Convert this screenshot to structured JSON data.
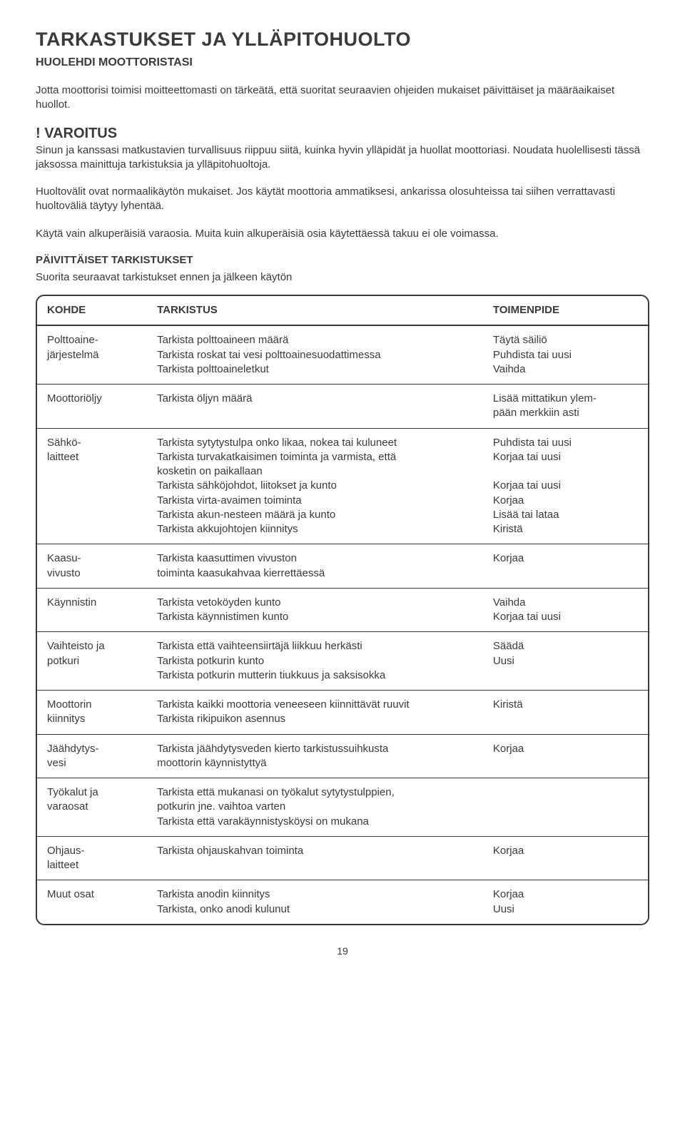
{
  "title": "TARKASTUKSET JA YLLÄPITOHUOLTO",
  "subtitle": "HUOLEHDI MOOTTORISTASI",
  "intro_paragraph": "Jotta moottorisi toimisi moitteettomasti on tärkeätä, että suoritat seuraavien ohjeiden mukaiset päivittäiset ja määräaikaiset huollot.",
  "warning_heading": "! VAROITUS",
  "warning_text": "Sinun ja kanssasi matkustavien turvallisuus riippuu siitä, kuinka hyvin ylläpidät ja huollat moottoriasi. Noudata huolellisesti tässä jaksossa mainittuja tarkistuksia ja ylläpitohuoltoja.",
  "interval_text": "Huoltovälit ovat normaalikäytön mukaiset. Jos käytät moottoria ammatiksesi, ankarissa olosuhteissa tai siihen verrattavasti huoltoväliä täytyy lyhentää.",
  "parts_text": "Käytä vain alkuperäisiä varaosia. Muita kuin alkuperäisiä osia käytettäessä takuu ei ole voimassa.",
  "section_heading": "PÄIVITTÄISET TARKISTUKSET",
  "section_intro": "Suorita seuraavat tarkistukset ennen ja jälkeen käytön",
  "table": {
    "headers": {
      "kohde": "KOHDE",
      "tarkistus": "TARKISTUS",
      "toimenpide": "TOIMENPIDE"
    },
    "rows": [
      {
        "kohde": "Polttoaine-\njärjestelmä",
        "tarkistus": "Tarkista polttoaineen määrä\nTarkista roskat tai vesi polttoainesuodattimessa\nTarkista polttoaineletkut",
        "toimenpide": "Täytä säiliö\nPuhdista tai uusi\nVaihda"
      },
      {
        "kohde": "Moottoriöljy",
        "tarkistus": "Tarkista öljyn määrä",
        "toimenpide": "Lisää mittatikun ylem-\npään merkkiin asti"
      },
      {
        "kohde": "Sähkö-\nlaitteet",
        "tarkistus": "Tarkista sytytystulpa onko likaa, nokea tai kuluneet\nTarkista turvakatkaisimen toiminta ja varmista, että\n kosketin on paikallaan\nTarkista sähköjohdot, liitokset ja kunto\nTarkista virta-avaimen toiminta\nTarkista akun-nesteen määrä ja kunto\nTarkista akkujohtojen kiinnitys",
        "toimenpide": "Puhdista tai uusi\nKorjaa tai uusi\n\nKorjaa tai uusi\nKorjaa\nLisää tai lataa\nKiristä"
      },
      {
        "kohde": "Kaasu-\nvivusto",
        "tarkistus": "Tarkista kaasuttimen vivuston\ntoiminta kaasukahvaa kierrettäessä",
        "toimenpide": "Korjaa"
      },
      {
        "kohde": "Käynnistin",
        "tarkistus": "Tarkista vetoköyden kunto\nTarkista käynnistimen kunto",
        "toimenpide": "Vaihda\nKorjaa tai uusi"
      },
      {
        "kohde": "Vaihteisto ja\npotkuri",
        "tarkistus": "Tarkista että vaihteensiirtäjä liikkuu herkästi\nTarkista potkurin kunto\nTarkista potkurin mutterin tiukkuus ja saksisokka",
        "toimenpide": "Säädä\nUusi"
      },
      {
        "kohde": "Moottorin\nkiinnitys",
        "tarkistus": "Tarkista kaikki moottoria veneeseen kiinnittävät ruuvit\nTarkista rikipuikon asennus",
        "toimenpide": "Kiristä"
      },
      {
        "kohde": "Jäähdytys-\nvesi",
        "tarkistus": "Tarkista jäähdytysveden kierto tarkistussuihkusta\nmoottorin käynnistyttyä",
        "toimenpide": "Korjaa"
      },
      {
        "kohde": "Työkalut ja\nvaraosat",
        "tarkistus": "Tarkista että mukanasi on työkalut sytytystulppien,\npotkurin jne. vaihtoa varten\nTarkista että varakäynnistysköysi on mukana",
        "toimenpide": ""
      },
      {
        "kohde": "Ohjaus-\nlaitteet",
        "tarkistus": "Tarkista ohjauskahvan toiminta",
        "toimenpide": "Korjaa"
      },
      {
        "kohde": "Muut osat",
        "tarkistus": "Tarkista anodin kiinnitys\nTarkista, onko anodi kulunut",
        "toimenpide": "Korjaa\nUusi"
      }
    ]
  },
  "page_number": "19"
}
